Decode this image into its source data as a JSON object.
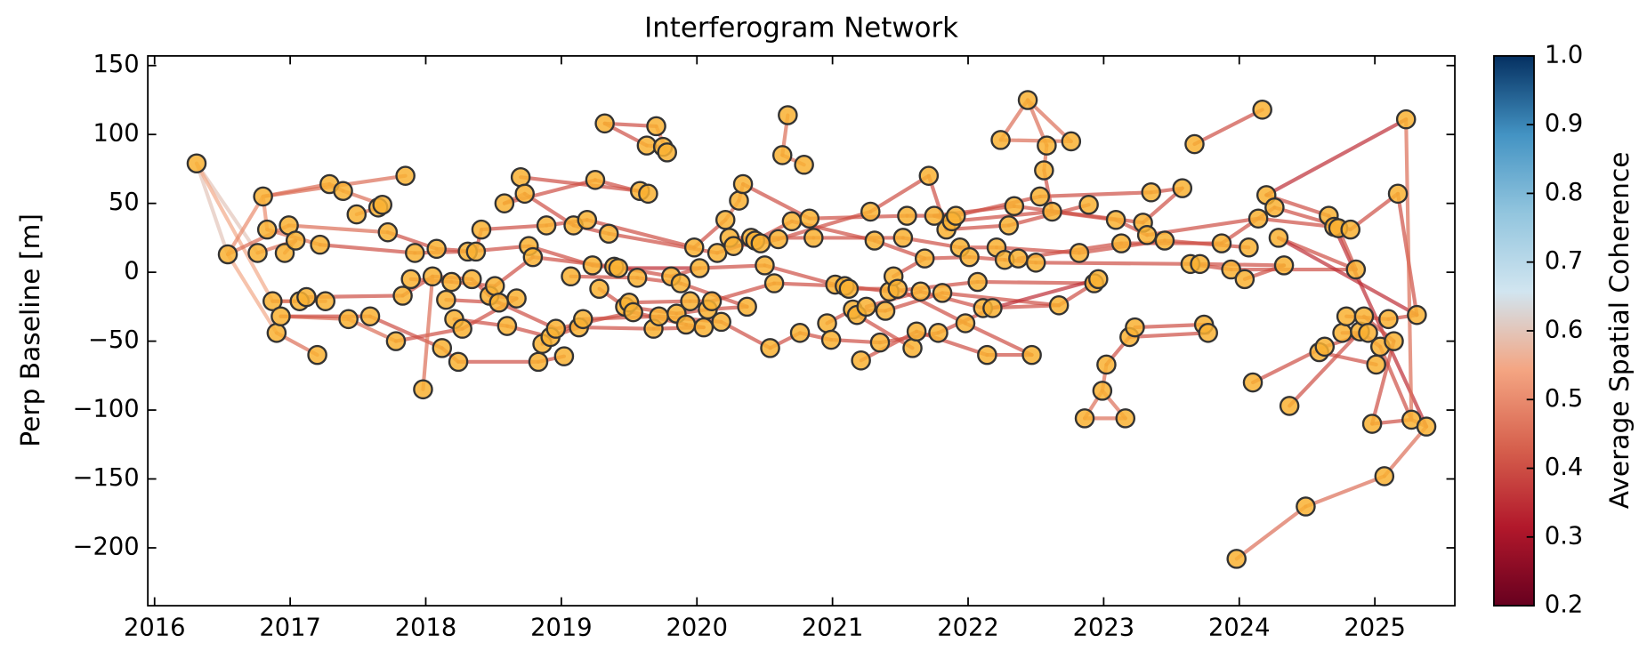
{
  "chart_data": {
    "type": "network",
    "title": "Interferogram Network",
    "ylabel": "Perp Baseline [m]",
    "colorbar_label": "Average Spatial Coherence",
    "xlim": [
      2015.95,
      2025.59
    ],
    "xticks": [
      2016,
      2017,
      2018,
      2019,
      2020,
      2021,
      2022,
      2023,
      2024,
      2025
    ],
    "ylim": [
      -242,
      157
    ],
    "yticks": [
      {
        "value": -200,
        "label": "−200"
      },
      {
        "value": -150,
        "label": "−150"
      },
      {
        "value": -100,
        "label": "−100"
      },
      {
        "value": -50,
        "label": "−50"
      },
      0,
      50,
      100,
      150
    ],
    "clim": [
      0.2,
      1.0
    ],
    "cticks": [
      0.2,
      0.3,
      0.4,
      0.5,
      0.6,
      0.7,
      0.8,
      0.9,
      {
        "value": 1.0,
        "label": "1.0"
      }
    ],
    "colormap": [
      "#67001f",
      "#b2182b",
      "#d6604d",
      "#f4a582",
      "#d1e5f0",
      "#92c5de",
      "#4393c3",
      "#053061"
    ],
    "node_color": "#f9b233",
    "node_edge_color": "#333333",
    "x": [
      2016.31,
      2016.54,
      2016.76,
      2016.8,
      2016.83,
      2016.87,
      2016.9,
      2016.93,
      2016.96,
      2016.99,
      2017.04,
      2017.07,
      2017.12,
      2017.2,
      2017.22,
      2017.26,
      2017.29,
      2017.39,
      2017.43,
      2017.49,
      2017.59,
      2017.65,
      2017.68,
      2017.72,
      2017.78,
      2017.83,
      2017.85,
      2017.89,
      2017.92,
      2017.98,
      2018.05,
      2018.08,
      2018.12,
      2018.15,
      2018.19,
      2018.21,
      2018.24,
      2018.27,
      2018.31,
      2018.34,
      2018.37,
      2018.41,
      2018.47,
      2018.51,
      2018.54,
      2018.58,
      2018.6,
      2018.67,
      2018.7,
      2018.73,
      2018.76,
      2018.79,
      2018.83,
      2018.86,
      2018.89,
      2018.92,
      2018.96,
      2019.02,
      2019.07,
      2019.09,
      2019.13,
      2019.16,
      2019.19,
      2019.23,
      2019.25,
      2019.28,
      2019.32,
      2019.35,
      2019.39,
      2019.42,
      2019.47,
      2019.5,
      2019.53,
      2019.56,
      2019.58,
      2019.63,
      2019.64,
      2019.68,
      2019.7,
      2019.72,
      2019.75,
      2019.78,
      2019.81,
      2019.85,
      2019.88,
      2019.92,
      2019.95,
      2019.98,
      2020.02,
      2020.05,
      2020.08,
      2020.11,
      2020.15,
      2020.18,
      2020.21,
      2020.24,
      2020.27,
      2020.31,
      2020.34,
      2020.37,
      2020.4,
      2020.43,
      2020.47,
      2020.5,
      2020.54,
      2020.57,
      2020.6,
      2020.63,
      2020.67,
      2020.7,
      2020.76,
      2020.79,
      2020.83,
      2020.86,
      2020.96,
      2020.99,
      2021.02,
      2021.09,
      2021.12,
      2021.15,
      2021.18,
      2021.21,
      2021.25,
      2021.28,
      2021.31,
      2021.35,
      2021.39,
      2021.42,
      2021.45,
      2021.48,
      2021.52,
      2021.55,
      2021.59,
      2021.62,
      2021.65,
      2021.68,
      2021.71,
      2021.75,
      2021.78,
      2021.81,
      2021.84,
      2021.88,
      2021.91,
      2021.94,
      2021.98,
      2022.01,
      2022.07,
      2022.11,
      2022.14,
      2022.18,
      2022.21,
      2022.24,
      2022.27,
      2022.3,
      2022.34,
      2022.37,
      2022.44,
      2022.47,
      2022.5,
      2022.53,
      2022.56,
      2022.58,
      2022.62,
      2022.67,
      2022.76,
      2022.82,
      2022.86,
      2022.89,
      2022.93,
      2022.96,
      2022.99,
      2023.02,
      2023.09,
      2023.13,
      2023.16,
      2023.19,
      2023.23,
      2023.29,
      2023.32,
      2023.35,
      2023.45,
      2023.58,
      2023.64,
      2023.67,
      2023.71,
      2023.74,
      2023.77,
      2023.87,
      2023.94,
      2023.98,
      2024.04,
      2024.07,
      2024.1,
      2024.14,
      2024.17,
      2024.2,
      2024.26,
      2024.29,
      2024.33,
      2024.37,
      2024.49,
      2024.59,
      2024.63,
      2024.66,
      2024.7,
      2024.73,
      2024.76,
      2024.79,
      2024.82,
      2024.86,
      2024.89,
      2024.92,
      2024.95,
      2024.98,
      2025.01,
      2025.04,
      2025.07,
      2025.1,
      2025.14,
      2025.17,
      2025.23,
      2025.27,
      2025.31,
      2025.38
    ],
    "values": [
      79,
      13,
      14,
      55,
      31,
      -21,
      -44,
      -32,
      14,
      34,
      23,
      -21,
      -18,
      -60,
      20,
      -21,
      64,
      59,
      -34,
      42,
      -32,
      47,
      49,
      29,
      -50,
      -17,
      70,
      -5,
      14,
      -85,
      -3,
      17,
      -55,
      -20,
      -7,
      -34,
      -65,
      -41,
      15,
      -5,
      15,
      31,
      -17,
      -10,
      -22,
      50,
      -39,
      -19,
      69,
      57,
      19,
      11,
      -65,
      -52,
      34,
      -47,
      -41,
      -61,
      -3,
      34,
      -40,
      -34,
      38,
      5,
      67,
      -12,
      108,
      28,
      4,
      3,
      -25,
      -22,
      -29,
      -4,
      59,
      92,
      57,
      -41,
      106,
      -32,
      91,
      87,
      -3,
      -30,
      -8,
      -38,
      -21,
      18,
      3,
      -40,
      -27,
      -21,
      14,
      -36,
      38,
      25,
      19,
      52,
      64,
      -25,
      25,
      23,
      21,
      5,
      -55,
      -8,
      24,
      85,
      114,
      37,
      -44,
      78,
      39,
      25,
      -37,
      -49,
      -9,
      -10,
      -12,
      -27,
      -31,
      -64,
      -25,
      44,
      23,
      -51,
      -28,
      -14,
      -3,
      -12,
      25,
      41,
      -55,
      -43,
      -14,
      10,
      70,
      41,
      -44,
      -15,
      31,
      37,
      41,
      18,
      -37,
      11,
      -7,
      -26,
      -60,
      -26,
      18,
      96,
      9,
      34,
      48,
      10,
      125,
      -60,
      7,
      55,
      74,
      92,
      44,
      -24,
      95,
      14,
      -106,
      49,
      -8,
      -5,
      -86,
      -67,
      38,
      21,
      -106,
      -47,
      -40,
      36,
      27,
      58,
      23,
      61,
      6,
      93,
      6,
      -38,
      -44,
      21,
      2,
      -208,
      -5,
      18,
      -80,
      39,
      118,
      56,
      47,
      25,
      5,
      -97,
      -170,
      -58,
      -54,
      41,
      33,
      32,
      -44,
      -32,
      31,
      2,
      -43,
      -32,
      -44,
      -110,
      -67,
      -54,
      -148,
      -34,
      -50,
      57,
      111,
      -107,
      -31,
      -112
    ],
    "edges": [
      [
        0,
        1,
        0.6
      ],
      [
        0,
        2,
        0.6
      ],
      [
        0,
        5,
        0.55
      ],
      [
        1,
        3,
        0.5
      ],
      [
        1,
        6,
        0.55
      ],
      [
        1,
        9,
        0.45
      ],
      [
        2,
        10,
        0.45
      ],
      [
        3,
        26,
        0.45
      ],
      [
        3,
        16,
        0.45
      ],
      [
        3,
        4,
        0.5
      ],
      [
        4,
        14,
        0.45
      ],
      [
        5,
        11,
        0.45
      ],
      [
        5,
        15,
        0.45
      ],
      [
        6,
        13,
        0.45
      ],
      [
        7,
        18,
        0.45
      ],
      [
        7,
        20,
        0.4
      ],
      [
        8,
        10,
        0.45
      ],
      [
        9,
        23,
        0.45
      ],
      [
        11,
        12,
        0.45
      ],
      [
        12,
        25,
        0.4
      ],
      [
        14,
        28,
        0.4
      ],
      [
        16,
        17,
        0.45
      ],
      [
        17,
        22,
        0.45
      ],
      [
        18,
        24,
        0.45
      ],
      [
        19,
        21,
        0.45
      ],
      [
        20,
        32,
        0.4
      ],
      [
        21,
        22,
        0.5
      ],
      [
        23,
        31,
        0.4
      ],
      [
        24,
        37,
        0.4
      ],
      [
        25,
        30,
        0.4
      ],
      [
        27,
        34,
        0.4
      ],
      [
        28,
        38,
        0.4
      ],
      [
        29,
        30,
        0.45
      ],
      [
        30,
        39,
        0.4
      ],
      [
        31,
        40,
        0.4
      ],
      [
        32,
        36,
        0.4
      ],
      [
        33,
        44,
        0.4
      ],
      [
        34,
        43,
        0.4
      ],
      [
        35,
        46,
        0.4
      ],
      [
        36,
        52,
        0.4
      ],
      [
        37,
        47,
        0.4
      ],
      [
        38,
        50,
        0.4
      ],
      [
        39,
        42,
        0.4
      ],
      [
        40,
        41,
        0.4
      ],
      [
        41,
        54,
        0.4
      ],
      [
        42,
        47,
        0.4
      ],
      [
        43,
        51,
        0.4
      ],
      [
        44,
        56,
        0.4
      ],
      [
        45,
        49,
        0.45
      ],
      [
        45,
        64,
        0.4
      ],
      [
        46,
        55,
        0.4
      ],
      [
        48,
        74,
        0.4
      ],
      [
        49,
        59,
        0.4
      ],
      [
        50,
        63,
        0.4
      ],
      [
        51,
        68,
        0.4
      ],
      [
        52,
        57,
        0.4
      ],
      [
        53,
        61,
        0.4
      ],
      [
        54,
        62,
        0.4
      ],
      [
        55,
        60,
        0.4
      ],
      [
        56,
        72,
        0.4
      ],
      [
        58,
        73,
        0.4
      ],
      [
        59,
        67,
        0.4
      ],
      [
        60,
        77,
        0.4
      ],
      [
        61,
        79,
        0.4
      ],
      [
        62,
        87,
        0.4
      ],
      [
        63,
        69,
        0.4
      ],
      [
        64,
        76,
        0.4
      ],
      [
        65,
        70,
        0.4
      ],
      [
        66,
        78,
        0.4
      ],
      [
        66,
        75,
        0.4
      ],
      [
        67,
        92,
        0.4
      ],
      [
        68,
        82,
        0.4
      ],
      [
        69,
        88,
        0.35
      ],
      [
        70,
        83,
        0.4
      ],
      [
        71,
        86,
        0.4
      ],
      [
        72,
        85,
        0.4
      ],
      [
        73,
        84,
        0.4
      ],
      [
        74,
        76,
        0.45
      ],
      [
        75,
        80,
        0.45
      ],
      [
        78,
        81,
        0.45
      ],
      [
        80,
        81,
        0.5
      ],
      [
        77,
        89,
        0.4
      ],
      [
        79,
        93,
        0.4
      ],
      [
        82,
        88,
        0.4
      ],
      [
        83,
        90,
        0.4
      ],
      [
        84,
        99,
        0.4
      ],
      [
        85,
        89,
        0.4
      ],
      [
        86,
        91,
        0.4
      ],
      [
        87,
        94,
        0.4
      ],
      [
        88,
        103,
        0.4
      ],
      [
        90,
        99,
        0.4
      ],
      [
        91,
        105,
        0.4
      ],
      [
        92,
        101,
        0.4
      ],
      [
        93,
        104,
        0.4
      ],
      [
        94,
        97,
        0.45
      ],
      [
        95,
        100,
        0.4
      ],
      [
        96,
        102,
        0.4
      ],
      [
        97,
        98,
        0.45
      ],
      [
        98,
        112,
        0.4
      ],
      [
        100,
        113,
        0.4
      ],
      [
        101,
        109,
        0.4
      ],
      [
        102,
        106,
        0.4
      ],
      [
        103,
        116,
        0.4
      ],
      [
        104,
        110,
        0.4
      ],
      [
        105,
        117,
        0.4
      ],
      [
        106,
        123,
        0.4
      ],
      [
        107,
        108,
        0.45
      ],
      [
        107,
        111,
        0.45
      ],
      [
        109,
        124,
        0.4
      ],
      [
        110,
        115,
        0.4
      ],
      [
        112,
        131,
        0.4
      ],
      [
        113,
        130,
        0.4
      ],
      [
        114,
        119,
        0.4
      ],
      [
        115,
        125,
        0.4
      ],
      [
        116,
        118,
        0.4
      ],
      [
        117,
        127,
        0.4
      ],
      [
        118,
        129,
        0.4
      ],
      [
        119,
        126,
        0.4
      ],
      [
        120,
        132,
        0.4
      ],
      [
        121,
        133,
        0.4
      ],
      [
        122,
        134,
        0.4
      ],
      [
        123,
        136,
        0.4
      ],
      [
        124,
        135,
        0.4
      ],
      [
        125,
        138,
        0.4
      ],
      [
        126,
        139,
        0.4
      ],
      [
        127,
        146,
        0.4
      ],
      [
        128,
        135,
        0.4
      ],
      [
        129,
        144,
        0.4
      ],
      [
        130,
        143,
        0.4
      ],
      [
        131,
        142,
        0.4
      ],
      [
        133,
        148,
        0.4
      ],
      [
        134,
        147,
        0.4
      ],
      [
        135,
        145,
        0.4
      ],
      [
        136,
        140,
        0.4
      ],
      [
        137,
        141,
        0.4
      ],
      [
        137,
        154,
        0.4
      ],
      [
        138,
        149,
        0.4
      ],
      [
        139,
        163,
        0.4
      ],
      [
        140,
        153,
        0.4
      ],
      [
        141,
        162,
        0.4
      ],
      [
        142,
        159,
        0.4
      ],
      [
        143,
        150,
        0.4
      ],
      [
        144,
        157,
        0.4
      ],
      [
        145,
        152,
        0.4
      ],
      [
        146,
        168,
        0.4
      ],
      [
        147,
        163,
        0.4
      ],
      [
        148,
        157,
        0.4
      ],
      [
        149,
        169,
        0.35
      ],
      [
        150,
        165,
        0.4
      ],
      [
        151,
        156,
        0.45
      ],
      [
        151,
        164,
        0.45
      ],
      [
        152,
        158,
        0.4
      ],
      [
        153,
        167,
        0.4
      ],
      [
        154,
        177,
        0.4
      ],
      [
        155,
        173,
        0.4
      ],
      [
        156,
        161,
        0.45
      ],
      [
        156,
        164,
        0.45
      ],
      [
        158,
        182,
        0.4
      ],
      [
        159,
        179,
        0.4
      ],
      [
        160,
        162,
        0.4
      ],
      [
        160,
        161,
        0.45
      ],
      [
        162,
        172,
        0.4
      ],
      [
        163,
        168,
        0.4
      ],
      [
        165,
        180,
        0.4
      ],
      [
        166,
        170,
        0.45
      ],
      [
        166,
        174,
        0.45
      ],
      [
        170,
        174,
        0.45
      ],
      [
        170,
        171,
        0.45
      ],
      [
        171,
        175,
        0.4
      ],
      [
        172,
        178,
        0.4
      ],
      [
        173,
        187,
        0.4
      ],
      [
        175,
        186,
        0.4
      ],
      [
        176,
        185,
        0.4
      ],
      [
        177,
        181,
        0.4
      ],
      [
        178,
        193,
        0.4
      ],
      [
        179,
        181,
        0.4
      ],
      [
        180,
        191,
        0.4
      ],
      [
        182,
        188,
        0.4
      ],
      [
        183,
        194,
        0.4
      ],
      [
        184,
        198,
        0.4
      ],
      [
        185,
        186,
        0.45
      ],
      [
        187,
        196,
        0.4
      ],
      [
        188,
        209,
        0.4
      ],
      [
        189,
        200,
        0.45
      ],
      [
        190,
        198,
        0.4
      ],
      [
        192,
        202,
        0.4
      ],
      [
        193,
        204,
        0.4
      ],
      [
        195,
        203,
        0.4
      ],
      [
        195,
        220,
        0.35
      ],
      [
        196,
        208,
        0.4
      ],
      [
        197,
        209,
        0.4
      ],
      [
        197,
        222,
        0.35
      ],
      [
        199,
        210,
        0.4
      ],
      [
        200,
        216,
        0.45
      ],
      [
        201,
        214,
        0.4
      ],
      [
        202,
        212,
        0.4
      ],
      [
        203,
        205,
        0.4
      ],
      [
        204,
        223,
        0.35
      ],
      [
        206,
        212,
        0.4
      ],
      [
        207,
        217,
        0.4
      ],
      [
        208,
        219,
        0.4
      ],
      [
        210,
        215,
        0.4
      ],
      [
        211,
        218,
        0.4
      ],
      [
        213,
        221,
        0.4
      ],
      [
        215,
        221,
        0.4
      ],
      [
        216,
        223,
        0.45
      ],
      [
        217,
        222,
        0.4
      ],
      [
        218,
        213,
        0.4
      ],
      [
        219,
        222,
        0.4
      ],
      [
        220,
        221,
        0.45
      ],
      [
        221,
        223,
        0.45
      ],
      [
        205,
        209,
        0.4
      ]
    ]
  }
}
